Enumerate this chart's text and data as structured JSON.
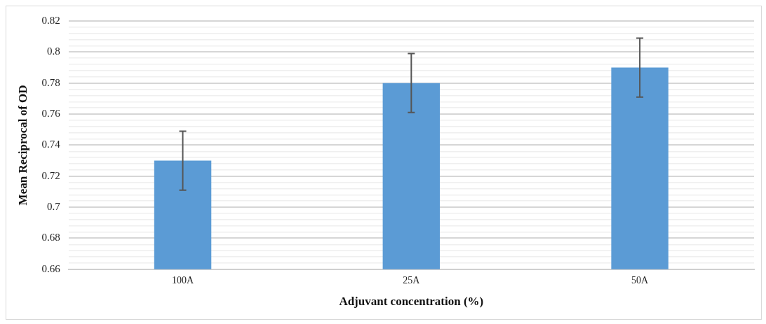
{
  "chart_data": {
    "type": "bar",
    "xlabel": "Adjuvant concentration (%)",
    "ylabel": "Mean Reciprocal of OD",
    "categories": [
      "100A",
      "25A",
      "50A"
    ],
    "values": [
      0.73,
      0.78,
      0.79
    ],
    "errors": [
      0.019,
      0.019,
      0.019
    ],
    "color": "#5b9bd5",
    "ylim": [
      0.66,
      0.82
    ],
    "yticks": [
      {
        "value": 0.66,
        "label": "0.66"
      },
      {
        "value": 0.664,
        "label": null
      },
      {
        "value": 0.668,
        "label": null
      },
      {
        "value": 0.672,
        "label": null
      },
      {
        "value": 0.676,
        "label": null
      },
      {
        "value": 0.68,
        "label": "0.68"
      },
      {
        "value": 0.684,
        "label": null
      },
      {
        "value": 0.688,
        "label": null
      },
      {
        "value": 0.692,
        "label": null
      },
      {
        "value": 0.696,
        "label": null
      },
      {
        "value": 0.7,
        "label": "0.7"
      },
      {
        "value": 0.704,
        "label": null
      },
      {
        "value": 0.708,
        "label": null
      },
      {
        "value": 0.712,
        "label": null
      },
      {
        "value": 0.716,
        "label": null
      },
      {
        "value": 0.72,
        "label": "0.72"
      },
      {
        "value": 0.724,
        "label": null
      },
      {
        "value": 0.728,
        "label": null
      },
      {
        "value": 0.732,
        "label": null
      },
      {
        "value": 0.736,
        "label": null
      },
      {
        "value": 0.74,
        "label": "0.74"
      },
      {
        "value": 0.744,
        "label": null
      },
      {
        "value": 0.748,
        "label": null
      },
      {
        "value": 0.752,
        "label": null
      },
      {
        "value": 0.756,
        "label": null
      },
      {
        "value": 0.76,
        "label": "0.76"
      },
      {
        "value": 0.764,
        "label": null
      },
      {
        "value": 0.768,
        "label": null
      },
      {
        "value": 0.772,
        "label": null
      },
      {
        "value": 0.776,
        "label": null
      },
      {
        "value": 0.78,
        "label": "0.78"
      },
      {
        "value": 0.784,
        "label": null
      },
      {
        "value": 0.788,
        "label": null
      },
      {
        "value": 0.792,
        "label": null
      },
      {
        "value": 0.796,
        "label": null
      },
      {
        "value": 0.8,
        "label": "0.8"
      },
      {
        "value": 0.804,
        "label": null
      },
      {
        "value": 0.808,
        "label": null
      },
      {
        "value": 0.812,
        "label": null
      },
      {
        "value": 0.816,
        "label": null
      },
      {
        "value": 0.82,
        "label": "0.82"
      }
    ],
    "grid": "y"
  }
}
